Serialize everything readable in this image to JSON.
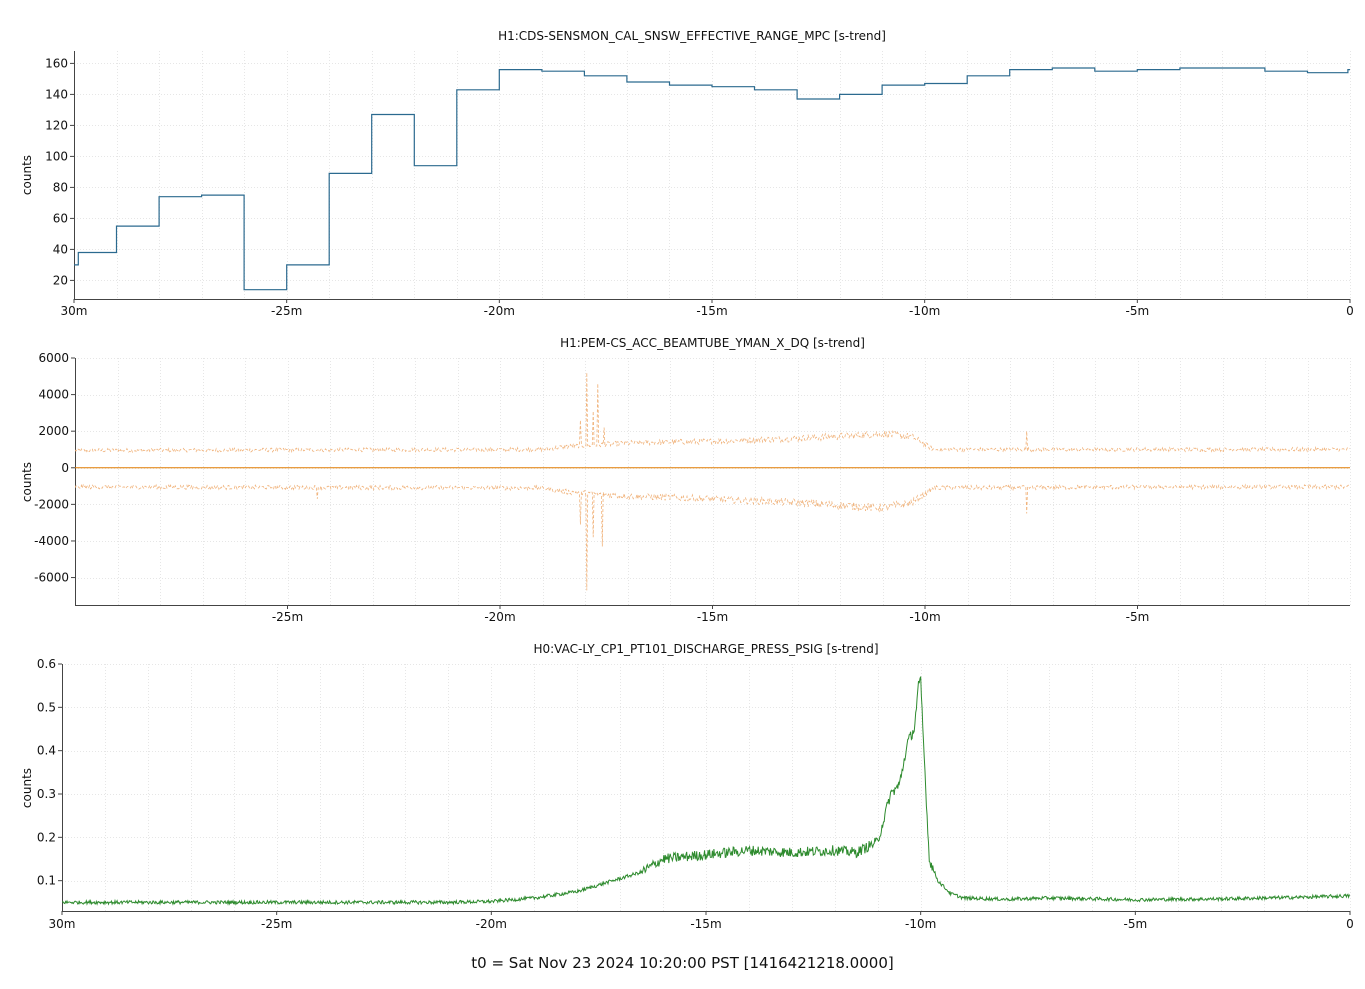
{
  "footer": "t0 = Sat Nov 23 2024 10:20:00 PST [1416421218.0000]",
  "chart_data": [
    {
      "type": "line",
      "title": "H1:CDS-SENSMON_CAL_SNSW_EFFECTIVE_RANGE_MPC [s-trend]",
      "ylabel": "counts",
      "xlim": [
        -30,
        0
      ],
      "ylim": [
        8,
        168
      ],
      "yticks": [
        20,
        40,
        60,
        80,
        100,
        120,
        140,
        160
      ],
      "xticks": [
        -30,
        -25,
        -20,
        -15,
        -10,
        -5,
        0
      ],
      "xtick_labels": [
        "30m",
        "-25m",
        "-20m",
        "-15m",
        "-10m",
        "-5m",
        "0"
      ],
      "grid": true,
      "series": [
        {
          "color": "#2b6a8f",
          "style": "step",
          "x": [
            -30,
            -29.9,
            -29,
            -28,
            -27,
            -26,
            -25,
            -24,
            -23,
            -22,
            -21,
            -20,
            -19,
            -18,
            -17,
            -16,
            -15,
            -14,
            -13,
            -12,
            -11,
            -10,
            -9,
            -8,
            -7,
            -6,
            -5,
            -4,
            -3,
            -2,
            -1,
            -0.05
          ],
          "y": [
            30,
            38,
            55,
            74,
            75,
            14,
            30,
            89,
            127,
            94,
            143,
            156,
            155,
            152,
            148,
            146,
            145,
            143,
            137,
            140,
            146,
            147,
            152,
            156,
            157,
            155,
            156,
            157,
            157,
            155,
            154,
            156
          ]
        }
      ]
    },
    {
      "type": "line",
      "title": "H1:PEM-CS_ACC_BEAMTUBE_YMAN_X_DQ [s-trend]",
      "ylabel": "counts",
      "xlim": [
        -30,
        0
      ],
      "ylim": [
        -7500,
        6000
      ],
      "yticks": [
        6000,
        4000,
        2000,
        0,
        -2000,
        -4000,
        -6000
      ],
      "xticks": [
        -25,
        -20,
        -15,
        -10,
        -5
      ],
      "xtick_labels": [
        "-25m",
        "-20m",
        "-15m",
        "-10m",
        "-5m"
      ],
      "grid": true,
      "series": [
        {
          "role": "mean",
          "color": "#e07b00",
          "style": "solid",
          "x": [
            -30,
            0
          ],
          "y": [
            0,
            0
          ]
        },
        {
          "role": "max",
          "color": "#f0b27a",
          "style": "dashed",
          "envelope_x": [
            -30,
            -19,
            -18.5,
            -17,
            -15,
            -13,
            -11,
            -10.3,
            -9.8,
            -5,
            0
          ],
          "envelope_y": [
            950,
            1000,
            1150,
            1350,
            1450,
            1600,
            1850,
            1700,
            1000,
            1000,
            1000
          ],
          "spikes": [
            {
              "x": -18.1,
              "y": 2600
            },
            {
              "x": -17.95,
              "y": 5200
            },
            {
              "x": -17.8,
              "y": 3100
            },
            {
              "x": -17.7,
              "y": 4600
            },
            {
              "x": -17.55,
              "y": 2200
            },
            {
              "x": -7.6,
              "y": 2000
            }
          ]
        },
        {
          "role": "min",
          "color": "#f0b27a",
          "style": "dashed",
          "envelope_x": [
            -30,
            -19,
            -18.5,
            -17,
            -15,
            -13,
            -11,
            -10.3,
            -9.8,
            -5,
            0
          ],
          "envelope_y": [
            -1050,
            -1100,
            -1300,
            -1550,
            -1700,
            -1900,
            -2200,
            -1900,
            -1100,
            -1050,
            -1050
          ],
          "spikes": [
            {
              "x": -18.1,
              "y": -3100
            },
            {
              "x": -17.95,
              "y": -6700
            },
            {
              "x": -17.8,
              "y": -3800
            },
            {
              "x": -17.6,
              "y": -4300
            },
            {
              "x": -24.3,
              "y": -1700
            },
            {
              "x": -7.6,
              "y": -2500
            }
          ]
        }
      ]
    },
    {
      "type": "line",
      "title": "H0:VAC-LY_CP1_PT101_DISCHARGE_PRESS_PSIG [s-trend]",
      "ylabel": "counts",
      "xlim": [
        -30,
        0
      ],
      "ylim": [
        0.03,
        0.6
      ],
      "yticks": [
        0.6,
        0.5,
        0.4,
        0.3,
        0.2,
        0.1
      ],
      "xticks": [
        -30,
        -25,
        -20,
        -15,
        -10,
        -5,
        0
      ],
      "xtick_labels": [
        "30m",
        "-25m",
        "-20m",
        "-15m",
        "-10m",
        "-5m",
        "0"
      ],
      "grid": true,
      "series": [
        {
          "color": "#2e8b2e",
          "style": "solid",
          "x": [
            -30,
            -25,
            -21,
            -20,
            -19,
            -18,
            -17.5,
            -16.5,
            -16,
            -15,
            -14,
            -13,
            -12,
            -11.5,
            -11,
            -10.7,
            -10.5,
            -10.3,
            -10.15,
            -10.05,
            -10,
            -9.9,
            -9.8,
            -9.6,
            -9.3,
            -9,
            -8,
            -7,
            -5,
            -3,
            -1,
            0
          ],
          "y": [
            0.05,
            0.05,
            0.05,
            0.052,
            0.06,
            0.075,
            0.09,
            0.12,
            0.15,
            0.16,
            0.17,
            0.165,
            0.17,
            0.165,
            0.19,
            0.3,
            0.32,
            0.42,
            0.45,
            0.55,
            0.56,
            0.35,
            0.15,
            0.1,
            0.07,
            0.06,
            0.057,
            0.06,
            0.056,
            0.058,
            0.062,
            0.065
          ]
        }
      ]
    }
  ]
}
